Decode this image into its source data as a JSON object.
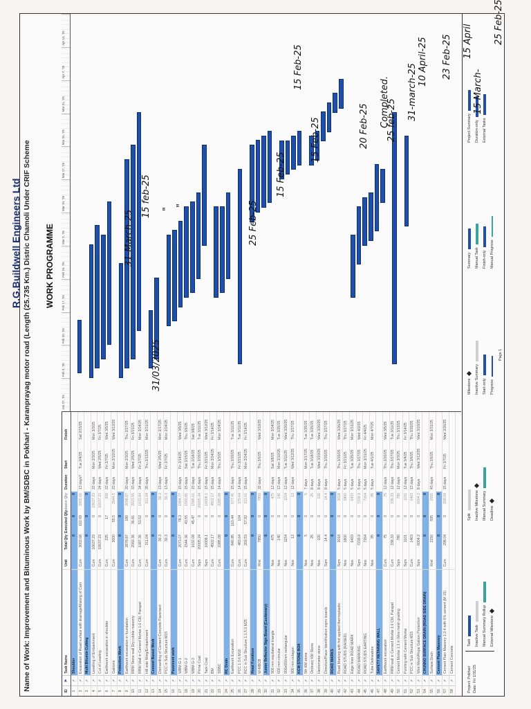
{
  "header": {
    "company": "R.G.Buildwell Engineers Ltd",
    "name_of_work": "Name of Work: Improvement and Bituminous Work by BM/SDBC in  Pokhari - Karanprayag motor road (Length (25.735 Km.) Distric Chamoli Under CRIF Scheme",
    "title": "WORK PROGRAMME"
  },
  "table": {
    "columns": [
      "ID",
      "Task Mode",
      "Task Name",
      "Unit",
      "Total Qty",
      "Executed Qty",
      "Balance Qty",
      "Duration",
      "Start",
      "Finish"
    ],
    "rows": [
      {
        "id": "1",
        "name": "Shoulder",
        "unit": "",
        "tq": "0",
        "eq": "0",
        "bq": "0",
        "dur": "",
        "start": "",
        "fin": "",
        "summary": true
      },
      {
        "id": "2",
        "name": "Excavation of Road surface with drainage/Making of Cam",
        "unit": "Cum",
        "tq": "3002.68",
        "eq": "102.69",
        "bq": "2900.00",
        "dur": "13 days?",
        "start": "Tue 2/4/25",
        "fin": "Sat 2/15/25"
      },
      {
        "id": "3",
        "name": "Multi Bitumin Cutting",
        "unit": "",
        "tq": "0",
        "eq": "0",
        "bq": "0",
        "dur": "",
        "start": "",
        "fin": "",
        "summary": true
      },
      {
        "id": "4",
        "name": "Levelling of Embankment",
        "unit": "Cum",
        "tq": "10637.23",
        "eq": "0",
        "bq": "10637.23",
        "dur": "22 days",
        "start": "Mon 2/3/25",
        "fin": "Mon 3/3/25"
      },
      {
        "id": "5",
        "name": "Cut of Leading",
        "unit": "Cum",
        "tq": "10637.23",
        "eq": "0",
        "bq": "10637.23",
        "dur": "24 days",
        "start": "Wed 2/5/25",
        "fin": "Fri 3/7/25"
      },
      {
        "id": "6",
        "name": "Earthwork excavation in shoulder",
        "unit": "Cum",
        "tq": "225",
        "eq": "17",
        "bq": "208",
        "dur": "22 days",
        "start": "Fri 2/7/25",
        "fin": "Wed 3/5/25"
      },
      {
        "id": "7",
        "name": "Gabions",
        "unit": "Cum",
        "tq": "3000",
        "eq": "55.5",
        "bq": "2944.5",
        "dur": "23 days",
        "start": "Mon 2/10/25",
        "fin": "Wed 3/12/25"
      },
      {
        "id": "8",
        "name": "Protection Work",
        "unit": "",
        "tq": "0",
        "eq": "0",
        "bq": "0",
        "dur": "",
        "start": "",
        "fin": "",
        "summary": true
      },
      {
        "id": "9",
        "name": "Earthwork excavation in foundation",
        "unit": "Cum",
        "tq": "2878.87",
        "eq": "180",
        "bq": "2698.87",
        "dur": "20 days",
        "start": "Mon 2/3/25",
        "fin": "Thu 2/27/25"
      },
      {
        "id": "10",
        "name": "RRM Stone wall Dry rubble masonry",
        "unit": "Cum",
        "tq": "2060.36",
        "eq": "36.81",
        "bq": "2023.55",
        "dur": "33 days",
        "start": "Wed 2/5/25",
        "fin": "Fri 3/21/25"
      },
      {
        "id": "11",
        "name": "RRM Wall in Cement Mortar 1:6 CM, Parapet",
        "unit": "Cum",
        "tq": "1687.36",
        "eq": "53.52",
        "bq": "1633.84",
        "dur": "34 days",
        "start": "Fri 2/7/25",
        "fin": "Mon 3/24/25"
      },
      {
        "id": "12",
        "name": "Hill side filling/Embankment",
        "unit": "Cum",
        "tq": "311.04",
        "eq": "0",
        "bq": "311.04",
        "dur": "35 days",
        "start": "Thu 2/13/25",
        "fin": "Mon 3/31/25"
      },
      {
        "id": "13",
        "name": "Cement Based Work",
        "unit": "",
        "tq": "0",
        "eq": "0",
        "bq": "0",
        "dur": "",
        "start": "",
        "fin": "",
        "summary": true
      },
      {
        "id": "14",
        "name": "Dismantling of Cement Concrete Pavement",
        "unit": "Cum",
        "tq": "30.3",
        "eq": "0",
        "bq": "30.3",
        "dur": "13 days",
        "start": "Wed 2/5/25",
        "fin": "Mon 2/17/25"
      },
      {
        "id": "15",
        "name": "PCC in Sub Structure M15",
        "unit": "Cum",
        "tq": "30.3",
        "eq": "0",
        "bq": "30.3",
        "dur": "13 days",
        "start": "Fri 2/7/25",
        "fin": "Mon 2/24/25"
      },
      {
        "id": "16",
        "name": "Pavement work",
        "unit": "",
        "tq": "0",
        "eq": "0",
        "bq": "0",
        "dur": "",
        "start": "",
        "fin": "",
        "summary": true
      },
      {
        "id": "17",
        "name": "WBM G-1",
        "unit": "Cum",
        "tq": "2073.07",
        "eq": "78.3",
        "bq": "1994.77",
        "dur": "15 days",
        "start": "Fri 2/14/25",
        "fin": "Wed 3/5/25"
      },
      {
        "id": "18",
        "name": "WBM G-2",
        "unit": "Cum",
        "tq": "1544.36",
        "eq": "43.55",
        "bq": "1500.81",
        "dur": "15 days",
        "start": "Sat 2/15/25",
        "fin": "Thu 3/6/25"
      },
      {
        "id": "19",
        "name": "WBM G-3",
        "unit": "Cum",
        "tq": "1632.08",
        "eq": "45.47",
        "bq": "1586.61",
        "dur": "15 days",
        "start": "Tue 2/18/25",
        "fin": "Sat 3/8/25"
      },
      {
        "id": "20",
        "name": "Prime Coat",
        "unit": "Sqm",
        "tq": "20005.24",
        "eq": "0",
        "bq": "20005.24",
        "dur": "15 days",
        "start": "Thu 2/20/25",
        "fin": "Tue 3/11/25"
      },
      {
        "id": "21",
        "name": "Tack Coat",
        "unit": "Sqm",
        "tq": "16008.1",
        "eq": "0",
        "bq": "16008.1",
        "dur": "15 days",
        "start": "Fri 2/21/25",
        "fin": "Wed 3/12/25"
      },
      {
        "id": "22",
        "name": "BM",
        "unit": "Cum",
        "tq": "4502.17",
        "eq": "0",
        "bq": "4502.17",
        "dur": "15 days",
        "start": "Mon 2/24/25",
        "fin": "Fri 3/14/25"
      },
      {
        "id": "23",
        "name": "SDBC",
        "unit": "Cum",
        "tq": "2285.08",
        "eq": "0",
        "bq": "2285.08",
        "dur": "14 days",
        "start": "Thu 3/3/25",
        "fin": "Mon 3/24/25"
      },
      {
        "id": "24",
        "name": "RC Drain",
        "unit": "",
        "tq": "0",
        "eq": "0",
        "bq": "0",
        "dur": "",
        "start": "",
        "fin": "",
        "summary": true
      },
      {
        "id": "25",
        "name": "Earthwork Excavation",
        "unit": "Cum",
        "tq": "840.85",
        "eq": "163.44",
        "bq": "677.41",
        "dur": "15 days",
        "start": "Thu 2/20/25",
        "fin": "Tue 3/11/25"
      },
      {
        "id": "26",
        "name": "PCC 1:3:6 M10",
        "unit": "Cum",
        "tq": "483.64",
        "eq": "104",
        "bq": "379.64",
        "dur": "14 days",
        "start": "Fri 2/21/25",
        "fin": "Tue 3/11/25"
      },
      {
        "id": "27",
        "name": "RCC in Sub Structure 1:1.5:3 M25",
        "unit": "Cum",
        "tq": "269.53",
        "eq": "57.92",
        "bq": "211.61",
        "dur": "15 days",
        "start": "Mon 2/24/25",
        "fin": "Fri 3/14/25"
      },
      {
        "id": "28",
        "name": "Road Furniture",
        "unit": "",
        "tq": "0",
        "eq": "0",
        "bq": "0",
        "dur": "",
        "start": "",
        "fin": "",
        "summary": true
      },
      {
        "id": "29",
        "name": "W-MBCB",
        "unit": "Rmt",
        "tq": "7850",
        "eq": "0",
        "bq": "7850",
        "dur": "32 days",
        "start": "Thu 2/6/25",
        "fin": "Wed 3/19/25"
      },
      {
        "id": "30",
        "name": "Junior Reflector Sign Board (Cautionary)",
        "unit": "",
        "tq": "0",
        "eq": "0",
        "bq": "0",
        "dur": "",
        "start": "",
        "fin": "",
        "summary": true
      },
      {
        "id": "31",
        "name": "900 mm equilateral triangle",
        "unit": "Nos",
        "tq": "475",
        "eq": "0",
        "bq": "475",
        "dur": "12 days",
        "start": "Sat 3/8/25",
        "fin": "Mon 3/24/25"
      },
      {
        "id": "32",
        "name": "600 mm circular",
        "unit": "Nos",
        "tq": "140",
        "eq": "0",
        "bq": "140",
        "dur": "12 days",
        "start": "Mon 3/10/25",
        "fin": "Tue 3/25/25"
      },
      {
        "id": "33",
        "name": "900x600mm rectangular",
        "unit": "Nos",
        "tq": "1154",
        "eq": "0",
        "bq": "1154",
        "dur": "12 days",
        "start": "Tue 3/11/25",
        "fin": "Wed 3/26/25"
      },
      {
        "id": "34",
        "name": "900 mm octagon",
        "unit": "Nos",
        "tq": "12",
        "eq": "0",
        "bq": "12",
        "dur": "12 days",
        "start": "Wed 3/12/25",
        "fin": "Thu 3/27/25"
      },
      {
        "id": "35",
        "name": "KCM STONE BOX",
        "unit": "",
        "tq": "0",
        "eq": "0",
        "bq": "0",
        "dur": "",
        "start": "",
        "fin": "",
        "summary": true
      },
      {
        "id": "36",
        "name": "5th KM stone",
        "unit": "Nos",
        "tq": "5",
        "eq": "0",
        "bq": "5",
        "dur": "7 days",
        "start": "Mon 3/17/25",
        "fin": "Tue 3/25/25"
      },
      {
        "id": "37",
        "name": "Ordinary KM Stone",
        "unit": "Nos",
        "tq": "25",
        "eq": "0",
        "bq": "25",
        "dur": "8 days",
        "start": "Tue 3/18/25",
        "fin": "Tue 3/25/25"
      },
      {
        "id": "38",
        "name": "Hectometer stone",
        "unit": "Nos",
        "tq": "100",
        "eq": "0",
        "bq": "100",
        "dur": "8 days",
        "start": "Wed 3/19/25",
        "fin": "Wed 3/26/25"
      },
      {
        "id": "39",
        "name": "Direction/Place Identification signs boards",
        "unit": "Sqm",
        "tq": "14.4",
        "eq": "0",
        "bq": "14.4",
        "dur": "8 days",
        "start": "Thu 3/20/25",
        "fin": "Thu 3/27/25"
      },
      {
        "id": "40",
        "name": "ROAD MARKS",
        "unit": "",
        "tq": "0",
        "eq": "0",
        "bq": "0",
        "dur": "",
        "start": "",
        "fin": "",
        "summary": true
      },
      {
        "id": "41",
        "name": "Road Marking with hot applied thermoplastic",
        "unit": "Sqm",
        "tq": "3018",
        "eq": "0",
        "bq": "3018",
        "dur": "5 days",
        "start": "Thu 3/20/25",
        "fin": "Wed 3/26/25"
      },
      {
        "id": "42",
        "name": "ROAD STUDS (RAISED)",
        "unit": "Nos",
        "tq": "1800",
        "eq": "0",
        "bq": "1800",
        "dur": "5 days",
        "start": "Fri 3/21/25",
        "fin": "Thu 3/27/25"
      },
      {
        "id": "43",
        "name": "Edge lines ROAD MARK",
        "unit": "Nos",
        "tq": "6433",
        "eq": "0",
        "bq": "6433",
        "dur": "5 days",
        "start": "Tue 3/25/25",
        "fin": "Mon 3/31/25"
      },
      {
        "id": "44",
        "name": "ROAD MARKING",
        "unit": "Sqm",
        "tq": "7239.9",
        "eq": "0",
        "bq": "7239.9",
        "dur": "5 days",
        "start": "Thu 3/27/25",
        "fin": "Wed 4/2/25"
      },
      {
        "id": "45",
        "name": "ROAD STUDS EARTING",
        "unit": "Nos",
        "tq": "7264",
        "eq": "0",
        "bq": "7264",
        "dur": "5 days",
        "start": "Mon 3/31/25",
        "fin": "Fri 4/4/25"
      },
      {
        "id": "46",
        "name": "Tube Delineators",
        "unit": "Nos",
        "tq": "95",
        "eq": "0",
        "bq": "95",
        "dur": "5 days",
        "start": "Tue 4/1/25",
        "fin": "Mon 4/7/25"
      },
      {
        "id": "47",
        "name": "SAFETY RETAINING WALL",
        "unit": "",
        "tq": "0",
        "eq": "0",
        "bq": "0",
        "dur": "",
        "start": "",
        "fin": "",
        "summary": true
      },
      {
        "id": "48",
        "name": "Earthwork excavation",
        "unit": "Cum",
        "tq": "75",
        "eq": "0",
        "bq": "75",
        "dur": "12 days",
        "start": "Thu 2/20/25",
        "fin": "Wed 3/5/25"
      },
      {
        "id": "49",
        "name": "RRM wall in Cement Mortar 1:6 CM, Parapet",
        "unit": "Cum",
        "tq": "338.33",
        "eq": "0",
        "bq": "338.33",
        "dur": "12 days",
        "start": "Thu 2/27/25",
        "fin": "Tue 3/11/25"
      },
      {
        "id": "50",
        "name": "Cement Mortar 1:3 in Wire mesh grading",
        "unit": "Sqm",
        "tq": "780",
        "eq": "0",
        "bq": "780",
        "dur": "12 days",
        "start": "Mon 3/3/25",
        "fin": "Thu 3/13/25"
      },
      {
        "id": "51",
        "name": "Pointing with Cement Mortar",
        "unit": "Sqm",
        "tq": "1101",
        "eq": "0",
        "bq": "1101",
        "dur": "12 days",
        "start": "Tue 3/4/25",
        "fin": "Fri 3/14/25"
      },
      {
        "id": "52",
        "name": "PCC in Sub Structure M15",
        "unit": "Cum",
        "tq": "1463",
        "eq": "0",
        "bq": "1463",
        "dur": "12 days",
        "start": "Thu 3/6/25",
        "fin": "Thu 3/20/25"
      },
      {
        "id": "53",
        "name": "Wire Mesh/Rope Gabion Protection",
        "unit": "Sqm",
        "tq": "6004.2",
        "eq": "0",
        "bq": "6004.2",
        "dur": "8 days",
        "start": "Wed 3/12/25",
        "fin": "Wed 3/19/25"
      },
      {
        "id": "54",
        "name": "CHUNNO SURFACE DRAIN (ROAD SIDE DRAIN)",
        "unit": "",
        "tq": "0",
        "eq": "0",
        "bq": "0",
        "dur": "",
        "start": "",
        "fin": "",
        "summary": true
      },
      {
        "id": "55",
        "name": "Surface Drain",
        "unit": "Rmt",
        "tq": "2150",
        "eq": "595",
        "bq": "1555",
        "dur": "43 days",
        "start": "Thu 2/6/25",
        "fin": "Mon 3/31/25"
      },
      {
        "id": "56",
        "name": "Cement Plain Masonry",
        "unit": "",
        "tq": "0",
        "eq": "0",
        "bq": "0",
        "dur": "",
        "start": "",
        "fin": "",
        "summary": true
      },
      {
        "id": "57",
        "name": "Cement Plain Masonry 1:2:4 with 6% cement (M 15)",
        "unit": "Cum",
        "tq": "298.04",
        "eq": "0",
        "bq": "298.04",
        "dur": "15 days",
        "start": "Fri 3/7/25",
        "fin": "Wed 3/26/25"
      },
      {
        "id": "58",
        "name": "Cement Concrete",
        "unit": "",
        "tq": "",
        "eq": "",
        "bq": "",
        "dur": "",
        "start": "",
        "fin": ""
      }
    ]
  },
  "timeline": {
    "weeks": [
      "Jan 27, '25",
      "Feb 3, '25",
      "Feb 10, '25",
      "Feb 17, '25",
      "Feb 24, '25",
      "Mar 3, '25",
      "Mar 10, '25",
      "Mar 17, '25",
      "Mar 24, '25",
      "Mar 31, '25",
      "Apr 7, '25",
      "Apr 14, '25"
    ]
  },
  "legend": {
    "project": "Project: Pokhari",
    "date": "Date: Fri 1/31/25",
    "items": [
      "Task",
      "Split",
      "Milestone",
      "Summary",
      "Project Summary",
      "Inactive Task",
      "Inactive Milestone",
      "Inactive Summary",
      "Manual Task",
      "Duration-only",
      "Manual Summary Rollup",
      "Manual Summary",
      "Start-only",
      "Finish-only",
      "External Tasks",
      "External Milestone",
      "Deadline",
      "Progress",
      "Manual Progress"
    ],
    "page": "Page 1"
  },
  "annotations": [
    "31/03/2025",
    "31-March-25",
    "15 feb-25",
    "\"",
    "\"",
    "25 Feb-25",
    "15 Feb-25",
    "15 Feb-25",
    "15 Feb-25",
    "20 Feb-25",
    "25 feb-25",
    "31-march-25",
    "Completed.",
    "10 April-25",
    "23 Feb-25",
    "15 April",
    "15 March-",
    "25 Feb-25"
  ]
}
